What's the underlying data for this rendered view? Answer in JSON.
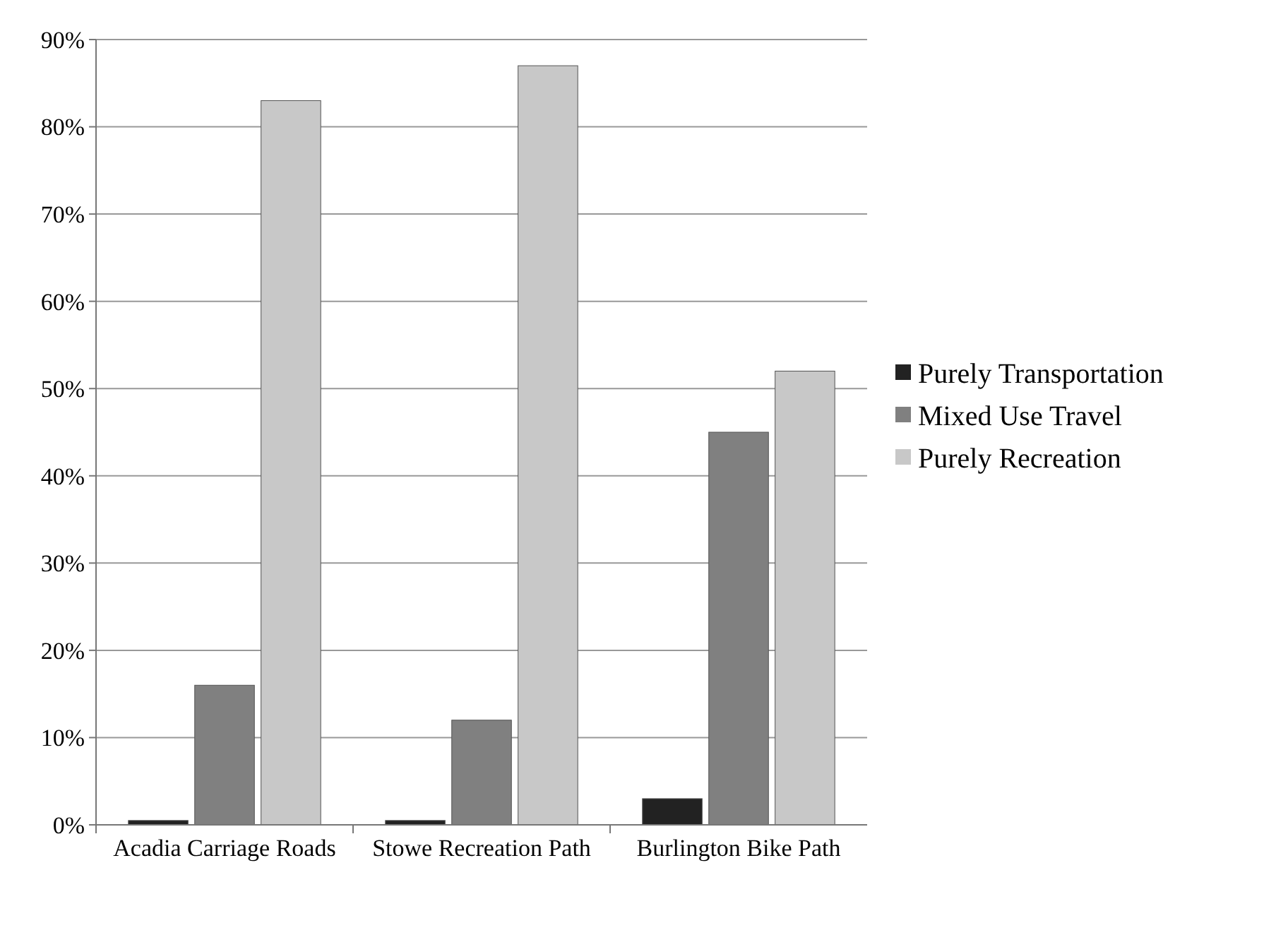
{
  "chart_data": {
    "type": "bar",
    "categories": [
      "Acadia Carriage Roads",
      "Stowe Recreation Path",
      "Burlington Bike Path"
    ],
    "series": [
      {
        "name": "Purely Transportation",
        "color": "#222222",
        "values": [
          0.5,
          0.5,
          3
        ]
      },
      {
        "name": "Mixed Use Travel",
        "color": "#808080",
        "values": [
          16,
          12,
          45
        ]
      },
      {
        "name": "Purely Recreation",
        "color": "#c8c8c8",
        "values": [
          83,
          87,
          52
        ]
      }
    ],
    "ylim": [
      0,
      90
    ],
    "yticks": [
      {
        "value": 0,
        "label": "0%"
      },
      {
        "value": 10,
        "label": "10%"
      },
      {
        "value": 20,
        "label": "20%"
      },
      {
        "value": 30,
        "label": "30%"
      },
      {
        "value": 40,
        "label": "40%"
      },
      {
        "value": 50,
        "label": "50%"
      },
      {
        "value": 60,
        "label": "60%"
      },
      {
        "value": 70,
        "label": "70%"
      },
      {
        "value": 80,
        "label": "80%"
      },
      {
        "value": 90,
        "label": "90%"
      }
    ],
    "grid": "y",
    "legend": "right"
  }
}
